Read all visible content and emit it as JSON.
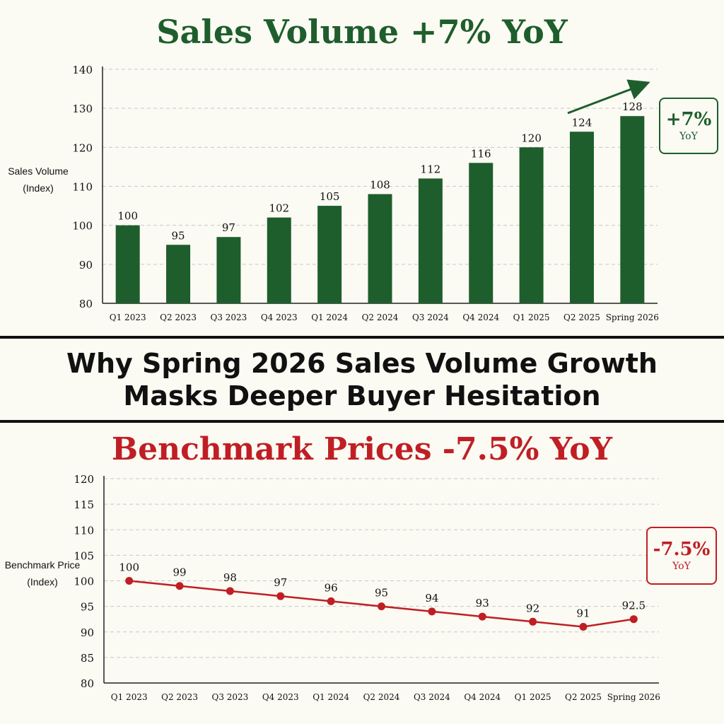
{
  "headline": {
    "line1": "Why Spring 2026 Sales Volume Growth",
    "line2": "Masks Deeper Buyer Hesitation"
  },
  "colors": {
    "sales_green": "#1e5e2c",
    "price_red": "#bf1f24",
    "background": "#fbfaf3"
  },
  "top_callout": {
    "value": "+7%",
    "unit": "YoY"
  },
  "bottom_callout": {
    "value": "-7.5%",
    "unit": "YoY"
  },
  "chart_data": [
    {
      "type": "bar",
      "title": "Sales Volume +7% YoY",
      "ylabel_line1": "Sales Volume",
      "ylabel_line2": "(Index)",
      "xlabel": "",
      "ylim": [
        80,
        140
      ],
      "yticks": [
        80,
        90,
        100,
        110,
        120,
        130,
        140
      ],
      "grid": true,
      "categories": [
        "Q1 2023",
        "Q2 2023",
        "Q3 2023",
        "Q4 2023",
        "Q1 2024",
        "Q2 2024",
        "Q3 2024",
        "Q4 2024",
        "Q1 2025",
        "Q2 2025",
        "Spring 2026"
      ],
      "values": [
        100,
        95,
        97,
        102,
        105,
        108,
        112,
        116,
        120,
        124,
        128
      ],
      "annotation": "upward trend arrow"
    },
    {
      "type": "line",
      "title": "Benchmark Prices -7.5% YoY",
      "ylabel_line1": "Benchmark Price",
      "ylabel_line2": "(Index)",
      "xlabel": "",
      "ylim": [
        80,
        120
      ],
      "yticks": [
        80,
        85,
        90,
        95,
        100,
        105,
        110,
        115,
        120
      ],
      "grid": true,
      "categories": [
        "Q1 2023",
        "Q2 2023",
        "Q3 2023",
        "Q4 2023",
        "Q1 2024",
        "Q2 2024",
        "Q3 2024",
        "Q4 2024",
        "Q1 2025",
        "Q2 2025",
        "Spring 2026"
      ],
      "values": [
        100,
        99,
        98,
        97,
        96,
        95,
        94,
        93,
        92,
        91,
        92.5
      ]
    }
  ]
}
